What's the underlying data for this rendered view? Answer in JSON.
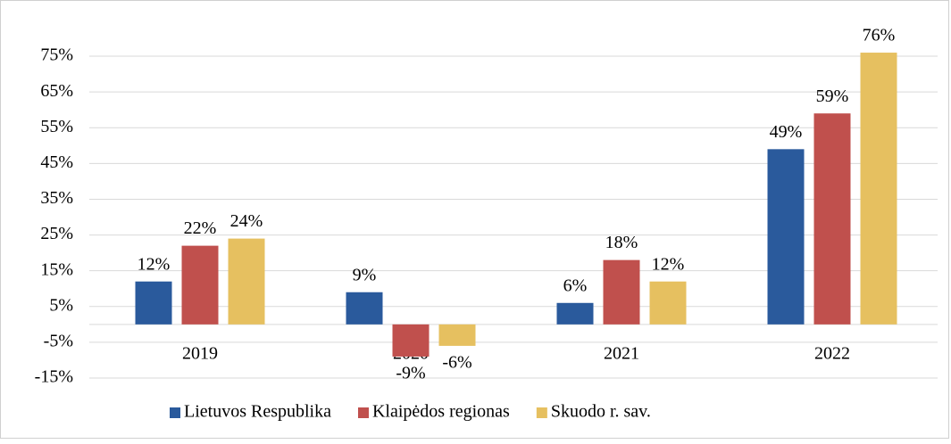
{
  "chart_data": {
    "type": "bar",
    "categories": [
      "2019",
      "2020",
      "2021",
      "2022"
    ],
    "series": [
      {
        "name": "Lietuvos Respublika",
        "color": "#2a5a9c",
        "values": [
          12,
          9,
          6,
          49
        ],
        "value_labels": [
          "12%",
          "9%",
          "6%",
          "49%"
        ]
      },
      {
        "name": "Klaipėdos regionas",
        "color": "#c0504d",
        "values": [
          22,
          -9,
          18,
          59
        ],
        "value_labels": [
          "22%",
          "-9%",
          "18%",
          "59%"
        ]
      },
      {
        "name": "Skuodo r. sav.",
        "color": "#e6c060",
        "values": [
          24,
          -6,
          12,
          76
        ],
        "value_labels": [
          "24%",
          "-6%",
          "12%",
          "76%"
        ]
      }
    ],
    "ylim": [
      -15,
      80
    ],
    "yticks": [
      {
        "value": -15,
        "label": "-15%"
      },
      {
        "value": -5,
        "label": "-5%"
      },
      {
        "value": 5,
        "label": "5%"
      },
      {
        "value": 15,
        "label": "15%"
      },
      {
        "value": 25,
        "label": "25%"
      },
      {
        "value": 35,
        "label": "35%"
      },
      {
        "value": 45,
        "label": "45%"
      },
      {
        "value": 55,
        "label": "55%"
      },
      {
        "value": 65,
        "label": "65%"
      },
      {
        "value": 75,
        "label": "75%"
      }
    ],
    "grid": true,
    "legend": "bottom"
  }
}
